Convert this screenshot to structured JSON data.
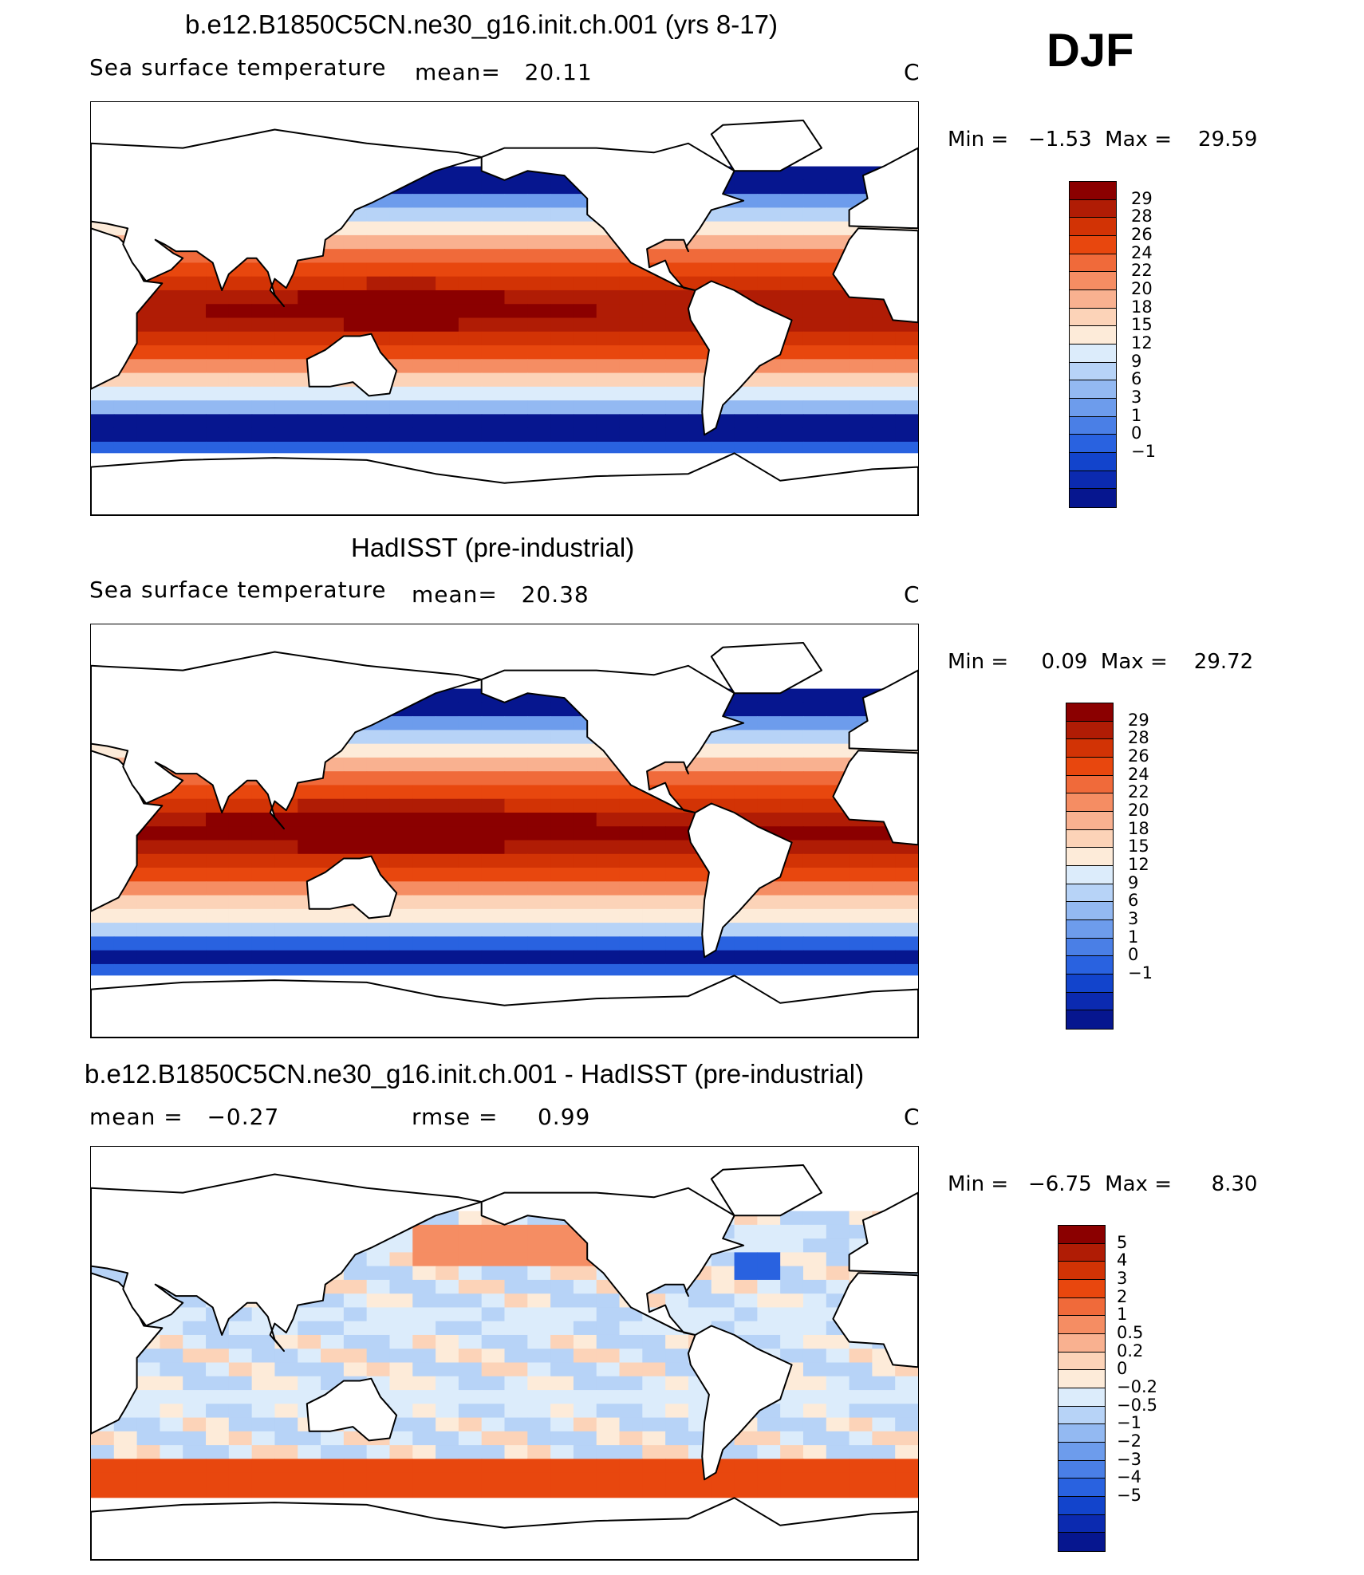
{
  "season": "DJF",
  "panels": [
    {
      "title": "b.e12.B1850C5CN.ne30_g16.init.ch.001 (yrs 8-17)",
      "left_label": "Sea surface temperature",
      "mid_label": "mean=   20.11",
      "units": "C",
      "minmax": "Min =   −1.53  Max =    29.59",
      "colorbar": {
        "labels": [
          "29",
          "28",
          "26",
          "24",
          "22",
          "20",
          "18",
          "15",
          "12",
          "9",
          "6",
          "3",
          "1",
          "0",
          "−1"
        ],
        "colors": [
          "#8b0000",
          "#b01c05",
          "#d23305",
          "#e8470e",
          "#f06a3a",
          "#f58d63",
          "#f9b190",
          "#fcd3b8",
          "#fdebd9",
          "#dcecfb",
          "#b7d3f7",
          "#93b9f2",
          "#6d9cec",
          "#4a7fe6",
          "#2962e0",
          "#1244cc",
          "#0b2ab0",
          "#06168f"
        ]
      },
      "field": "sst"
    },
    {
      "title": "HadISST (pre-industrial)",
      "left_label": "Sea surface temperature",
      "mid_label": "mean=   20.38",
      "units": "C",
      "minmax": "Min =     0.09  Max =    29.72",
      "colorbar": {
        "labels": [
          "29",
          "28",
          "26",
          "24",
          "22",
          "20",
          "18",
          "15",
          "12",
          "9",
          "6",
          "3",
          "1",
          "0",
          "−1"
        ],
        "colors": [
          "#8b0000",
          "#b01c05",
          "#d23305",
          "#e8470e",
          "#f06a3a",
          "#f58d63",
          "#f9b190",
          "#fcd3b8",
          "#fdebd9",
          "#dcecfb",
          "#b7d3f7",
          "#93b9f2",
          "#6d9cec",
          "#4a7fe6",
          "#2962e0",
          "#1244cc",
          "#0b2ab0",
          "#06168f"
        ]
      },
      "field": "sst2"
    },
    {
      "title": "b.e12.B1850C5CN.ne30_g16.init.ch.001 - HadISST (pre-industrial)",
      "left_label": "mean =   −0.27",
      "mid_label": "rmse =     0.99",
      "units": "C",
      "minmax": "Min =   −6.75  Max =      8.30",
      "colorbar": {
        "labels": [
          "5",
          "4",
          "3",
          "2",
          "1",
          "0.5",
          "0.2",
          "0",
          "−0.2",
          "−0.5",
          "−1",
          "−2",
          "−3",
          "−4",
          "−5"
        ],
        "colors": [
          "#8b0000",
          "#b01c05",
          "#d23305",
          "#e8470e",
          "#f06a3a",
          "#f58d63",
          "#f9b190",
          "#fcd3b8",
          "#fdebd9",
          "#dcecfb",
          "#b7d3f7",
          "#93b9f2",
          "#6d9cec",
          "#4a7fe6",
          "#2962e0",
          "#1244cc",
          "#0b2ab0",
          "#06168f"
        ]
      },
      "field": "diff"
    }
  ]
}
